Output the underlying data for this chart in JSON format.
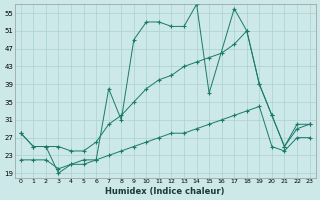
{
  "xlabel": "Humidex (Indice chaleur)",
  "background_color": "#cce8e8",
  "grid_color": "#aad0d0",
  "line_color": "#1a7a6a",
  "xlim": [
    -0.5,
    23.5
  ],
  "ylim": [
    18,
    57
  ],
  "yticks": [
    19,
    23,
    27,
    31,
    35,
    39,
    43,
    47,
    51,
    55
  ],
  "xticks": [
    0,
    1,
    2,
    3,
    4,
    5,
    6,
    7,
    8,
    9,
    10,
    11,
    12,
    13,
    14,
    15,
    16,
    17,
    18,
    19,
    20,
    21,
    22,
    23
  ],
  "series": [
    {
      "x": [
        0,
        1,
        2,
        3,
        4,
        5,
        6,
        7,
        8,
        9,
        10,
        11,
        12,
        13,
        14,
        15,
        17,
        18,
        19,
        20,
        21,
        22,
        23
      ],
      "y": [
        28,
        25,
        25,
        19,
        21,
        22,
        22,
        38,
        31,
        49,
        53,
        53,
        52,
        52,
        57,
        37,
        56,
        51,
        39,
        32,
        25,
        30,
        30
      ]
    },
    {
      "x": [
        0,
        1,
        2,
        3,
        4,
        5,
        6,
        7,
        8,
        9,
        10,
        11,
        12,
        13,
        14,
        15,
        16,
        17,
        18,
        19,
        20,
        21,
        22,
        23
      ],
      "y": [
        28,
        25,
        25,
        25,
        24,
        24,
        26,
        30,
        32,
        35,
        38,
        40,
        41,
        43,
        44,
        45,
        46,
        48,
        51,
        39,
        32,
        25,
        29,
        30
      ]
    },
    {
      "x": [
        0,
        1,
        2,
        3,
        4,
        5,
        6,
        7,
        8,
        9,
        10,
        11,
        12,
        13,
        14,
        15,
        16,
        17,
        18,
        19,
        20,
        21,
        22,
        23
      ],
      "y": [
        22,
        22,
        22,
        20,
        21,
        21,
        22,
        23,
        24,
        25,
        26,
        27,
        28,
        28,
        29,
        30,
        31,
        32,
        33,
        34,
        25,
        24,
        27,
        27
      ]
    }
  ]
}
